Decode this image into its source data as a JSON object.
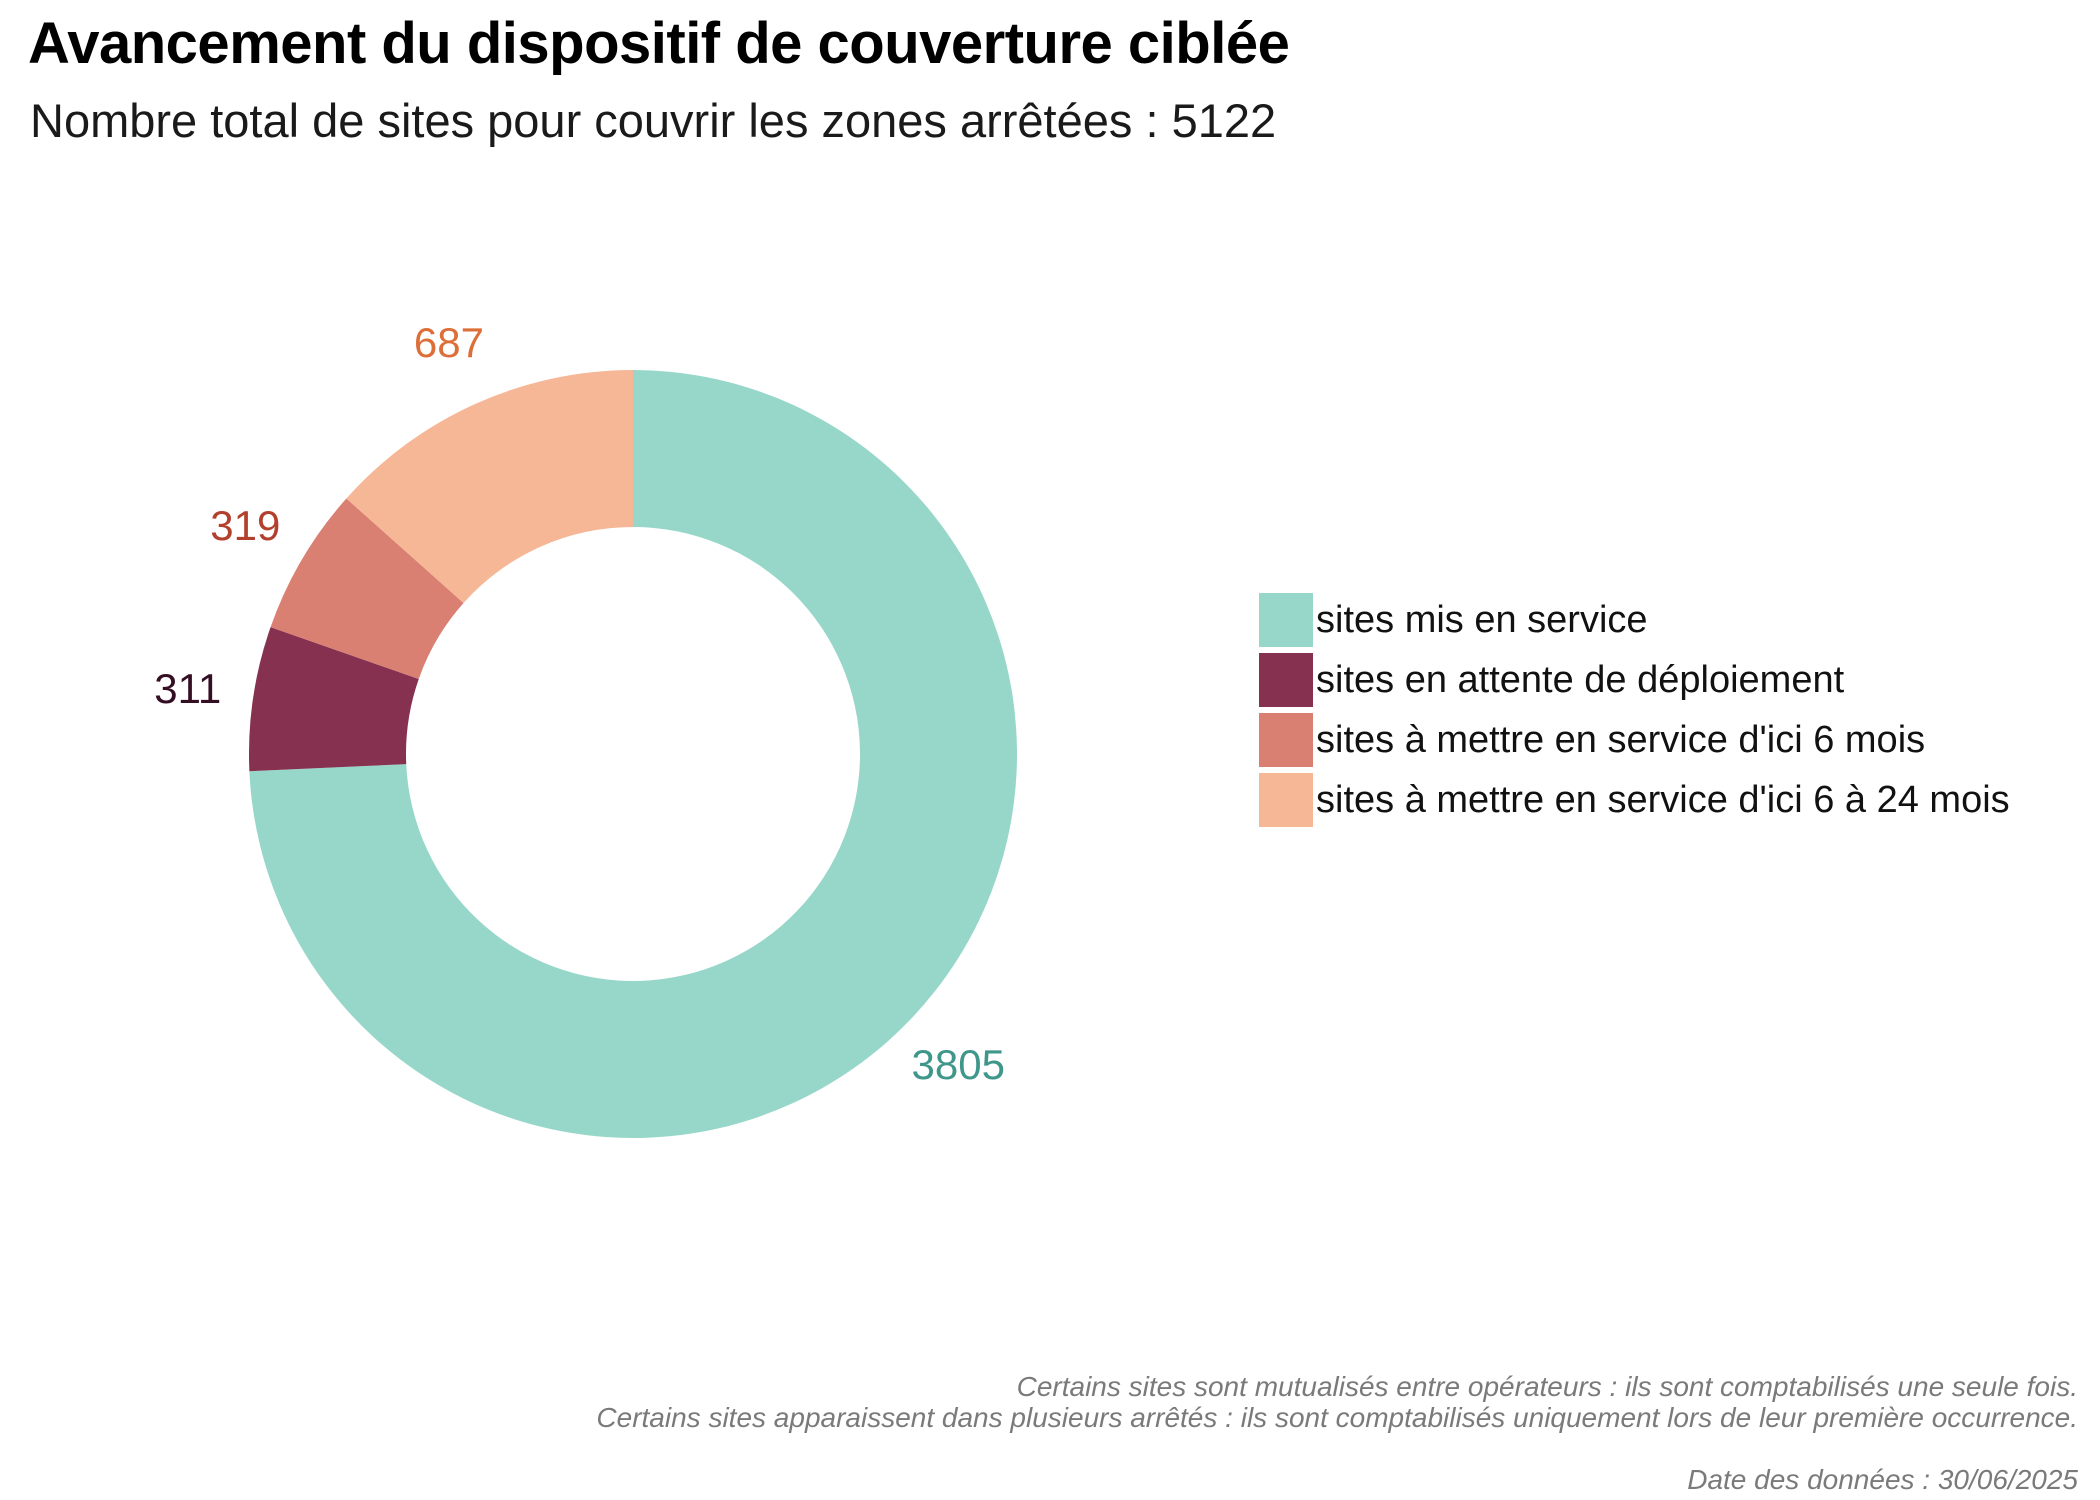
{
  "chart_data": {
    "type": "pie",
    "subtype": "donut",
    "title": "Avancement du dispositif de couverture ciblée",
    "subtitle": "Nombre total de sites pour couvrir les zones arrêtées : 5122",
    "total": 5122,
    "start_angle_deg": 0,
    "direction": "clockwise",
    "donut_hole_ratio": 0.59,
    "legend_position": "right",
    "slices": [
      {
        "label": "sites mis en service",
        "value": 3805,
        "color": "#97d7c9",
        "value_color": "#3f968b"
      },
      {
        "label": "sites en attente de déploiement",
        "value": 311,
        "color": "#863150",
        "value_color": "#340e23"
      },
      {
        "label": "sites à mettre en service d'ici 6 mois",
        "value": 319,
        "color": "#da8073",
        "value_color": "#b2402d"
      },
      {
        "label": "sites à mettre en service d'ici 6 à 24 mois",
        "value": 687,
        "color": "#f6b797",
        "value_color": "#de6e38"
      }
    ]
  },
  "footer": {
    "note_line1": "Certains sites sont mutualisés entre opérateurs : ils sont comptabilisés une seule fois.",
    "note_line2": "Certains sites apparaissent dans plusieurs arrêtés : ils sont comptabilisés uniquement lors de leur première occurrence.",
    "date_line": "Date des données : 30/06/2025"
  }
}
